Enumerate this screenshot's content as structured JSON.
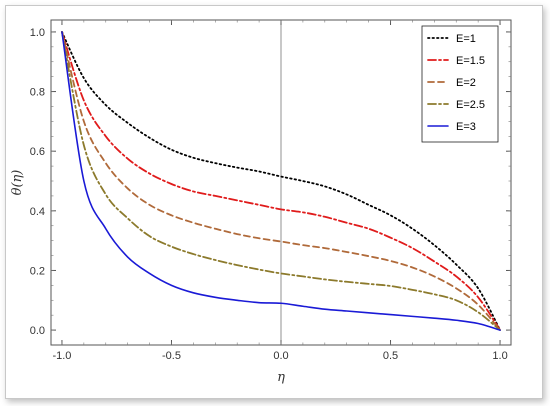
{
  "chart_data": {
    "type": "line",
    "title": "",
    "xlabel": "η",
    "ylabel": "θ(η)",
    "xlim": [
      -1.05,
      1.05
    ],
    "ylim": [
      -0.05,
      1.04
    ],
    "x_ticks": [
      -1.0,
      -0.5,
      0.0,
      0.5,
      1.0
    ],
    "x_tick_labels": [
      "-1.0",
      "-0.5",
      "0.0",
      "0.5",
      "1.0"
    ],
    "y_ticks": [
      0.0,
      0.2,
      0.4,
      0.6,
      0.8,
      1.0
    ],
    "y_tick_labels": [
      "0.0",
      "0.2",
      "0.4",
      "0.6",
      "0.8",
      "1.0"
    ],
    "legend_position": "top-right",
    "grid": false,
    "series": [
      {
        "name": "E=1",
        "color": "#000000",
        "dash": "dotted",
        "x": [
          -1.0,
          -0.9,
          -0.8,
          -0.7,
          -0.6,
          -0.5,
          -0.4,
          -0.3,
          -0.2,
          -0.1,
          0.0,
          0.1,
          0.2,
          0.3,
          0.4,
          0.5,
          0.6,
          0.7,
          0.8,
          0.9,
          1.0
        ],
        "y": [
          1.0,
          0.845,
          0.755,
          0.695,
          0.645,
          0.605,
          0.578,
          0.56,
          0.545,
          0.532,
          0.515,
          0.5,
          0.482,
          0.455,
          0.42,
          0.385,
          0.34,
          0.285,
          0.22,
          0.14,
          0.0
        ]
      },
      {
        "name": "E=1.5",
        "color": "#e01b1b",
        "dash": "dashdot",
        "x": [
          -1.0,
          -0.9,
          -0.8,
          -0.7,
          -0.6,
          -0.5,
          -0.4,
          -0.3,
          -0.2,
          -0.1,
          0.0,
          0.1,
          0.2,
          0.3,
          0.4,
          0.5,
          0.6,
          0.7,
          0.8,
          0.9,
          1.0
        ],
        "y": [
          1.0,
          0.77,
          0.65,
          0.575,
          0.525,
          0.49,
          0.465,
          0.45,
          0.435,
          0.42,
          0.405,
          0.395,
          0.38,
          0.36,
          0.34,
          0.31,
          0.275,
          0.23,
          0.18,
          0.11,
          0.0
        ]
      },
      {
        "name": "E=2",
        "color": "#b06a3a",
        "dash": "dashed",
        "x": [
          -1.0,
          -0.9,
          -0.8,
          -0.7,
          -0.6,
          -0.5,
          -0.4,
          -0.3,
          -0.2,
          -0.1,
          0.0,
          0.1,
          0.2,
          0.3,
          0.4,
          0.5,
          0.6,
          0.7,
          0.8,
          0.9,
          1.0
        ],
        "y": [
          1.0,
          0.7,
          0.56,
          0.475,
          0.42,
          0.385,
          0.36,
          0.34,
          0.322,
          0.308,
          0.297,
          0.285,
          0.275,
          0.262,
          0.248,
          0.232,
          0.21,
          0.18,
          0.14,
          0.085,
          0.0
        ]
      },
      {
        "name": "E=2.5",
        "color": "#8c7a2c",
        "dash": "dashdot",
        "x": [
          -1.0,
          -0.9,
          -0.8,
          -0.7,
          -0.6,
          -0.5,
          -0.4,
          -0.3,
          -0.2,
          -0.1,
          0.0,
          0.1,
          0.2,
          0.3,
          0.4,
          0.5,
          0.6,
          0.7,
          0.8,
          0.9,
          1.0
        ],
        "y": [
          1.0,
          0.62,
          0.455,
          0.375,
          0.315,
          0.28,
          0.255,
          0.235,
          0.218,
          0.203,
          0.19,
          0.18,
          0.17,
          0.162,
          0.155,
          0.148,
          0.135,
          0.12,
          0.1,
          0.06,
          0.0
        ]
      },
      {
        "name": "E=3",
        "color": "#1a1ad6",
        "dash": "solid",
        "x": [
          -1.0,
          -0.9,
          -0.8,
          -0.7,
          -0.6,
          -0.5,
          -0.4,
          -0.3,
          -0.2,
          -0.1,
          0.0,
          0.1,
          0.2,
          0.3,
          0.4,
          0.5,
          0.6,
          0.7,
          0.8,
          0.9,
          1.0
        ],
        "y": [
          1.0,
          0.5,
          0.34,
          0.245,
          0.19,
          0.15,
          0.125,
          0.11,
          0.1,
          0.092,
          0.09,
          0.08,
          0.07,
          0.064,
          0.058,
          0.052,
          0.046,
          0.04,
          0.033,
          0.022,
          0.0
        ]
      }
    ]
  }
}
